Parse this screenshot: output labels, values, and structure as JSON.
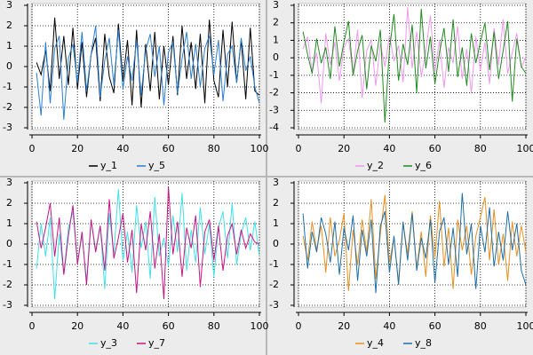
{
  "chart_data": [
    {
      "type": "line",
      "xlim": [
        0,
        100
      ],
      "xticks": [
        0,
        20,
        40,
        60,
        80,
        100
      ],
      "ylim": [
        -3,
        3
      ],
      "yticks": [
        -3,
        -2,
        -1,
        0,
        1,
        2,
        3
      ],
      "grid": true,
      "x": [
        2,
        4,
        6,
        8,
        10,
        12,
        14,
        16,
        18,
        20,
        22,
        24,
        26,
        28,
        30,
        32,
        34,
        36,
        38,
        40,
        42,
        44,
        46,
        48,
        50,
        52,
        54,
        56,
        58,
        60,
        62,
        64,
        66,
        68,
        70,
        72,
        74,
        76,
        78,
        80,
        82,
        84,
        86,
        88,
        90,
        92,
        94,
        96,
        98,
        100
      ],
      "series": [
        {
          "name": "y_1",
          "color": "#000000",
          "values": [
            0.2,
            -0.4,
            0.8,
            -1.2,
            2.4,
            -0.6,
            1.5,
            -0.9,
            1.9,
            -1.1,
            1.2,
            -1.5,
            0.6,
            1.4,
            -1.7,
            1.6,
            -0.5,
            -1.3,
            2.1,
            -0.7,
            1.3,
            -1.9,
            1.8,
            -2.0,
            1.1,
            -1.2,
            1.7,
            -1.6,
            1.0,
            -0.9,
            1.5,
            -1.4,
            2.0,
            -0.6,
            1.2,
            -1.1,
            1.6,
            -1.8,
            2.3,
            -0.7,
            -1.5,
            1.8,
            -1.0,
            2.2,
            -0.8,
            1.3,
            -1.6,
            1.9,
            -1.2,
            -1.4
          ]
        },
        {
          "name": "y_5",
          "color": "#2a7fd4",
          "values": [
            -0.3,
            -2.4,
            1.2,
            -1.8,
            0.9,
            1.5,
            -2.6,
            0.4,
            1.1,
            -0.8,
            1.7,
            -1.2,
            0.6,
            2.0,
            -1.5,
            0.3,
            1.4,
            -0.9,
            1.8,
            -1.1,
            0.5,
            -0.7,
            1.3,
            -1.4,
            0.8,
            1.6,
            -0.5,
            1.0,
            -1.9,
            0.7,
            1.2,
            -1.3,
            0.4,
            1.7,
            -0.6,
            1.1,
            -1.0,
            0.9,
            1.5,
            -0.4,
            1.3,
            -1.7,
            0.6,
            1.0,
            -0.8,
            1.4,
            -0.2,
            0.5,
            -1.0,
            -1.8
          ]
        }
      ]
    },
    {
      "type": "line",
      "xlim": [
        0,
        100
      ],
      "xticks": [
        0,
        20,
        40,
        60,
        80,
        100
      ],
      "ylim": [
        -4,
        3
      ],
      "yticks": [
        -4,
        -3,
        -2,
        -1,
        0,
        1,
        2,
        3
      ],
      "grid": true,
      "x": [
        2,
        4,
        6,
        8,
        10,
        12,
        14,
        16,
        18,
        20,
        22,
        24,
        26,
        28,
        30,
        32,
        34,
        36,
        38,
        40,
        42,
        44,
        46,
        48,
        50,
        52,
        54,
        56,
        58,
        60,
        62,
        64,
        66,
        68,
        70,
        72,
        74,
        76,
        78,
        80,
        82,
        84,
        86,
        88,
        90,
        92,
        94,
        96,
        98,
        100
      ],
      "series": [
        {
          "name": "y_2",
          "color": "#ee99ee",
          "values": [
            0.5,
            1.2,
            -0.8,
            0.3,
            -2.6,
            1.4,
            -0.4,
            0.9,
            -1.3,
            0.6,
            1.1,
            -0.9,
            1.6,
            -2.3,
            0.4,
            1.0,
            -1.6,
            0.8,
            -0.5,
            1.3,
            -0.2,
            0.7,
            -1.4,
            2.9,
            -0.6,
            1.5,
            -1.1,
            0.4,
            2.4,
            -0.8,
            1.0,
            -1.7,
            0.6,
            -0.3,
            1.8,
            -1.2,
            0.5,
            -2.0,
            1.2,
            -0.7,
            0.9,
            -1.5,
            1.7,
            -0.4,
            2.2,
            -0.9,
            0.3,
            1.4,
            -0.6,
            0.1
          ]
        },
        {
          "name": "y_6",
          "color": "#228b22",
          "values": [
            1.5,
            0.2,
            -0.9,
            1.1,
            -0.3,
            0.6,
            -1.2,
            1.8,
            -0.5,
            0.9,
            2.1,
            -1.0,
            0.4,
            1.3,
            -1.8,
            0.7,
            -0.2,
            1.6,
            -3.7,
            0.5,
            2.5,
            -1.3,
            0.8,
            -0.4,
            1.9,
            -2.0,
            2.8,
            -0.6,
            1.2,
            -1.5,
            0.3,
            1.7,
            -0.8,
            2.2,
            -1.1,
            0.6,
            -1.6,
            1.4,
            -0.3,
            0.9,
            2.0,
            -0.7,
            1.5,
            -1.2,
            0.4,
            2.1,
            -2.5,
            1.1,
            -0.5,
            -0.9
          ]
        }
      ]
    },
    {
      "type": "line",
      "xlim": [
        0,
        100
      ],
      "xticks": [
        0,
        20,
        40,
        60,
        80,
        100
      ],
      "ylim": [
        -3,
        3
      ],
      "yticks": [
        -3,
        -2,
        -1,
        0,
        1,
        2,
        3
      ],
      "grid": true,
      "x": [
        2,
        4,
        6,
        8,
        10,
        12,
        14,
        16,
        18,
        20,
        22,
        24,
        26,
        28,
        30,
        32,
        34,
        36,
        38,
        40,
        42,
        44,
        46,
        48,
        50,
        52,
        54,
        56,
        58,
        60,
        62,
        64,
        66,
        68,
        70,
        72,
        74,
        76,
        78,
        80,
        82,
        84,
        86,
        88,
        90,
        92,
        94,
        96,
        98,
        100
      ],
      "series": [
        {
          "name": "y_3",
          "color": "#40e0e8",
          "values": [
            -1.2,
            1.0,
            -0.6,
            1.3,
            -2.7,
            0.5,
            -1.5,
            0.8,
            1.6,
            -0.9,
            0.4,
            -1.8,
            1.2,
            -0.3,
            0.9,
            -2.2,
            1.5,
            -0.5,
            2.7,
            -0.8,
            0.6,
            -1.4,
            1.9,
            -0.2,
            1.1,
            -1.7,
            2.3,
            -0.6,
            0.3,
            -1.1,
            1.4,
            -0.4,
            2.5,
            -1.3,
            0.7,
            -0.9,
            1.8,
            -0.5,
            1.0,
            -1.6,
            0.8,
            1.6,
            -0.7,
            2.0,
            -1.0,
            0.5,
            1.3,
            -0.3,
            1.1,
            -0.6
          ]
        },
        {
          "name": "y_7",
          "color": "#c71585",
          "values": [
            1.1,
            -0.2,
            0.8,
            2.0,
            -0.6,
            1.3,
            -1.5,
            0.4,
            1.9,
            -1.0,
            0.6,
            -2.0,
            1.2,
            -0.4,
            0.9,
            -1.3,
            2.2,
            -0.7,
            0.3,
            1.5,
            -0.9,
            0.7,
            -2.4,
            1.0,
            -0.3,
            1.6,
            -1.2,
            0.5,
            -2.7,
            2.8,
            -0.5,
            1.1,
            -1.6,
            0.8,
            -0.2,
            1.4,
            -2.1,
            0.6,
            1.2,
            -0.8,
            0.9,
            -1.3,
            0.4,
            1.0,
            -0.5,
            0.7,
            -0.2,
            0.5,
            0.1,
            0.0
          ]
        }
      ]
    },
    {
      "type": "line",
      "xlim": [
        0,
        100
      ],
      "xticks": [
        0,
        20,
        40,
        60,
        80,
        100
      ],
      "ylim": [
        -3,
        3
      ],
      "yticks": [
        -3,
        -2,
        -1,
        0,
        1,
        2,
        3
      ],
      "grid": true,
      "x": [
        2,
        4,
        6,
        8,
        10,
        12,
        14,
        16,
        18,
        20,
        22,
        24,
        26,
        28,
        30,
        32,
        34,
        36,
        38,
        40,
        42,
        44,
        46,
        48,
        50,
        52,
        54,
        56,
        58,
        60,
        62,
        64,
        66,
        68,
        70,
        72,
        74,
        76,
        78,
        80,
        82,
        84,
        86,
        88,
        90,
        92,
        94,
        96,
        98,
        100
      ],
      "series": [
        {
          "name": "y_4",
          "color": "#e69020",
          "values": [
            0.4,
            -0.8,
            1.1,
            -0.3,
            0.9,
            -1.4,
            1.3,
            -0.6,
            0.2,
            1.5,
            -2.3,
            0.7,
            -1.0,
            1.2,
            -0.4,
            2.2,
            -1.7,
            0.5,
            2.4,
            -0.9,
            0.3,
            -1.9,
            1.0,
            -0.5,
            1.6,
            -1.2,
            0.6,
            -1.6,
            1.4,
            -0.7,
            2.1,
            -1.1,
            0.8,
            -2.2,
            1.2,
            -0.3,
            0.9,
            -1.5,
            0.4,
            1.3,
            2.3,
            -0.8,
            1.7,
            -1.0,
            0.5,
            -1.8,
            1.1,
            -0.6,
            0.9,
            -0.4
          ]
        },
        {
          "name": "y_8",
          "color": "#1f6fa8",
          "values": [
            1.5,
            -1.2,
            0.6,
            -0.4,
            1.3,
            0.5,
            -0.9,
            1.1,
            -1.5,
            0.8,
            -0.3,
            1.4,
            -1.8,
            0.7,
            -0.6,
            1.2,
            -2.4,
            0.9,
            1.6,
            -1.4,
            0.4,
            -2.0,
            1.1,
            -0.8,
            1.5,
            -1.3,
            0.3,
            -0.7,
            1.2,
            -1.9,
            0.6,
            1.3,
            -1.0,
            0.8,
            -1.6,
            2.5,
            -0.5,
            1.0,
            -2.2,
            0.9,
            -0.4,
            1.8,
            -1.1,
            0.6,
            -0.8,
            1.6,
            -0.3,
            1.0,
            -1.3,
            -2.0
          ]
        }
      ]
    }
  ]
}
